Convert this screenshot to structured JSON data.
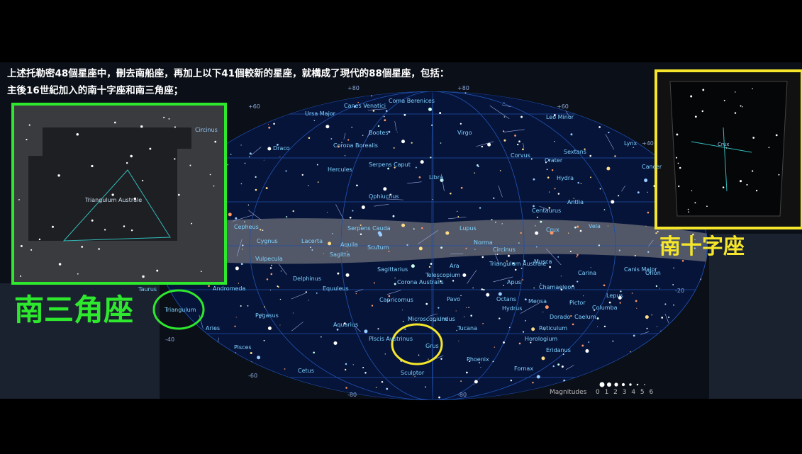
{
  "caption": {
    "line1": "上述托勒密48個星座中，刪去南船座，再加上以下41個較新的星座，就構成了現代的88個星座，包括：",
    "line2": "主後16世紀加入的南十字座和南三角座；"
  },
  "callouts": {
    "green": "南三角座",
    "yellow": "南十字座"
  },
  "inset_green": {
    "labels": [
      "Triangulum Australe",
      "Circinus"
    ]
  },
  "inset_yellow": {
    "labels": [
      "Crux"
    ]
  },
  "map": {
    "constellations": [
      "Ursa Major",
      "Canes Venatici",
      "Coma Berenices",
      "Leo Minor",
      "Bootes",
      "Virgo",
      "Draco",
      "Corona Borealis",
      "Serpens Caput",
      "Hercules",
      "Libra",
      "Corvus",
      "Sextans",
      "Crater",
      "Hydra",
      "Cancer",
      "Lynx",
      "Antlia",
      "Ophiuchus",
      "Centaurus",
      "Cepheus",
      "Serpens Cauda",
      "Lupus",
      "Crux",
      "Vela",
      "Cygnus",
      "Lacerta",
      "Aquila",
      "Scutum",
      "Sagitta",
      "Norma",
      "Circinus",
      "Vulpecula",
      "Sagittarius",
      "Ara",
      "Telescopium",
      "Triangulum Australe",
      "Musca",
      "Carina",
      "Canis Major",
      "Orion",
      "Delphinus",
      "Andromeda",
      "Corona Australis",
      "Apus",
      "Chamaeleon",
      "Equuleus",
      "Pavo",
      "Octans",
      "Mensa",
      "Pictor",
      "Lepus",
      "Capricornus",
      "Hydrus",
      "Columba",
      "Pegasus",
      "Microscopium",
      "Indus",
      "Dorado",
      "Caelum",
      "Aquarius",
      "Tucana",
      "Reticulum",
      "Piscis Austrinus",
      "Horologium",
      "Grus",
      "Eridanus",
      "Pisces",
      "Phoenix",
      "Fornax",
      "Sculptor",
      "Cetus",
      "Aries",
      "Taurus",
      "Triangulum"
    ],
    "grid_labels": [
      "+80",
      "+80",
      "+60",
      "+60",
      "+40",
      "-20",
      "-40",
      "-60",
      "-80",
      "-80"
    ],
    "legend": {
      "title": "Magnitudes",
      "scale": "0 1 2 3 4 5 6"
    }
  }
}
